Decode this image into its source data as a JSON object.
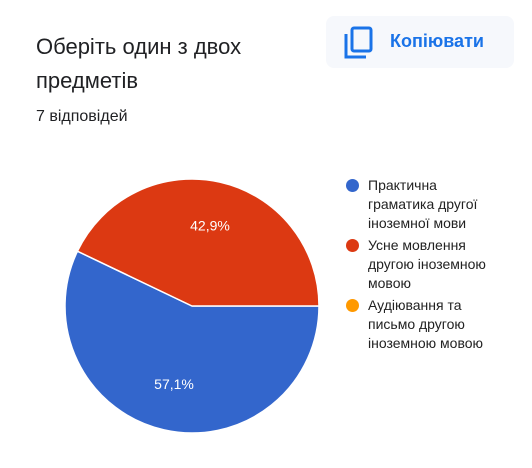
{
  "chart_data": {
    "type": "pie",
    "title": "Оберіть один з двох предметів",
    "subtitle": "7 відповідей",
    "copy_button": "Копіювати",
    "categories": [
      "Практична граматика другої іноземної мови",
      "Усне мовлення другою іноземною мовою",
      "Аудіювання та письмо другою іноземною мовою"
    ],
    "values": [
      57.1,
      42.9,
      0
    ],
    "value_labels": [
      "57,1%",
      "42,9%",
      null
    ],
    "colors": [
      "#3366cc",
      "#dc3912",
      "#ff9900"
    ],
    "legend": "right"
  }
}
